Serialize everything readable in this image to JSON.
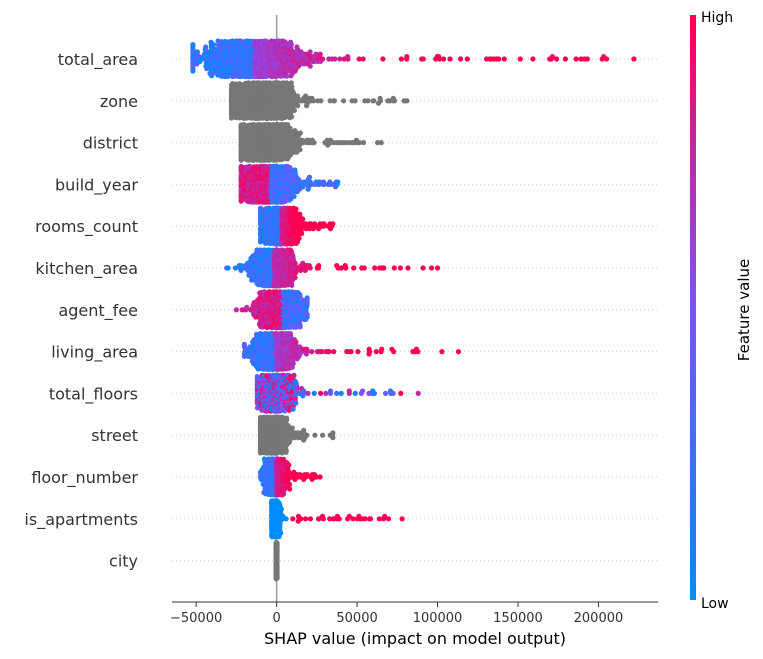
{
  "chart_data": {
    "type": "scatter",
    "subtype": "beeswarm",
    "title": "",
    "xlabel": "SHAP value (impact on model output)",
    "xlim": [
      -65000,
      237000
    ],
    "xticks": [
      -50000,
      0,
      50000,
      100000,
      150000,
      200000
    ],
    "xtick_labels": [
      "−50000",
      "0",
      "50000",
      "100000",
      "150000",
      "200000"
    ],
    "zero_line": true,
    "grid": false,
    "colorbar": {
      "title": "Feature value",
      "high_label": "High",
      "low_label": "Low",
      "low_color": "#008bfb",
      "high_color": "#ff0051",
      "no_value_color": "#777777",
      "placement": "right"
    },
    "features": [
      {
        "name": "total_area",
        "min": -52000,
        "max": 222000,
        "peak": -14000,
        "spread": 14000,
        "n": 1400,
        "color": "gradient"
      },
      {
        "name": "zone",
        "min": -28000,
        "max": 81000,
        "peak": -8000,
        "spread": 9000,
        "n": 1100,
        "color": "none"
      },
      {
        "name": "district",
        "min": -22000,
        "max": 65000,
        "peak": -7000,
        "spread": 8000,
        "n": 1100,
        "color": "none"
      },
      {
        "name": "build_year",
        "min": -22000,
        "max": 38000,
        "peak": -6000,
        "spread": 7000,
        "n": 1300,
        "color": "gradient_reversed"
      },
      {
        "name": "rooms_count",
        "min": -10000,
        "max": 35000,
        "peak": 3000,
        "spread": 5000,
        "n": 1000,
        "color": "gradient"
      },
      {
        "name": "kitchen_area",
        "min": -31000,
        "max": 100000,
        "peak": -2000,
        "spread": 6000,
        "n": 1000,
        "color": "gradient"
      },
      {
        "name": "agent_fee",
        "min": -25000,
        "max": 19000,
        "peak": 2000,
        "spread": 6000,
        "n": 1000,
        "color": "gradient_reversed"
      },
      {
        "name": "living_area",
        "min": -20000,
        "max": 113000,
        "peak": -1000,
        "spread": 6000,
        "n": 1000,
        "color": "gradient"
      },
      {
        "name": "total_floors",
        "min": -12000,
        "max": 88000,
        "peak": 0,
        "spread": 5000,
        "n": 1000,
        "color": "mixed"
      },
      {
        "name": "street",
        "min": -10000,
        "max": 35000,
        "peak": -3000,
        "spread": 4000,
        "n": 1000,
        "color": "none"
      },
      {
        "name": "floor_number",
        "min": -10000,
        "max": 27000,
        "peak": -1000,
        "spread": 3000,
        "n": 900,
        "color": "gradient"
      },
      {
        "name": "is_apartments",
        "min": -3000,
        "max": 78000,
        "peak": -1000,
        "spread": 1200,
        "n": 900,
        "color": "binary"
      },
      {
        "name": "city",
        "min": -300,
        "max": 300,
        "peak": 0,
        "spread": 150,
        "n": 500,
        "color": "none"
      }
    ]
  }
}
